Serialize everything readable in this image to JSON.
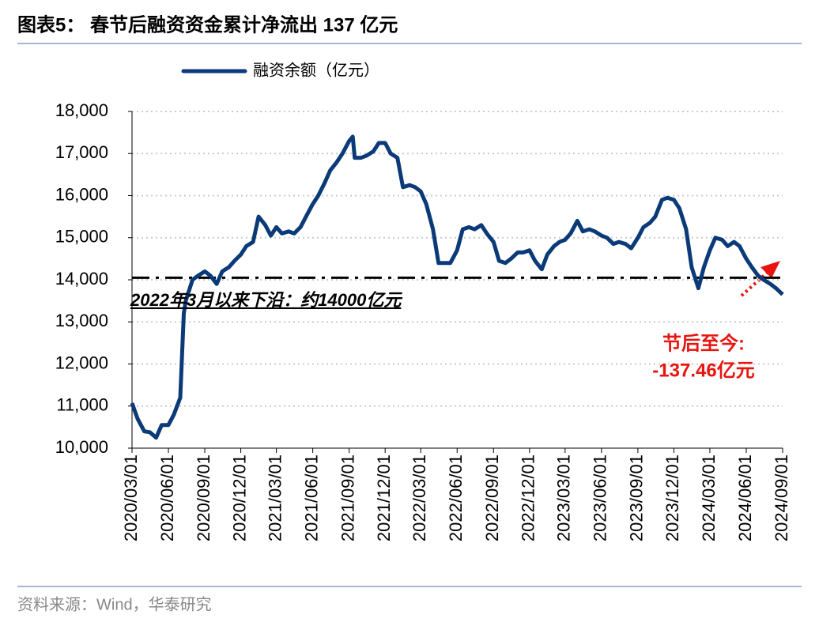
{
  "chart_data": {
    "type": "line",
    "title": "图表5：  春节后融资资金累计净流出 137 亿元",
    "x": [
      "2020/03/01",
      "2020/03/15",
      "2020/04/01",
      "2020/04/15",
      "2020/05/01",
      "2020/05/15",
      "2020/06/01",
      "2020/06/15",
      "2020/07/01",
      "2020/07/10",
      "2020/07/15",
      "2020/08/01",
      "2020/08/15",
      "2020/09/01",
      "2020/09/15",
      "2020/10/01",
      "2020/10/15",
      "2020/11/01",
      "2020/11/15",
      "2020/12/01",
      "2020/12/15",
      "2021/01/01",
      "2021/01/15",
      "2021/02/01",
      "2021/02/15",
      "2021/03/01",
      "2021/03/15",
      "2021/04/01",
      "2021/04/15",
      "2021/05/01",
      "2021/05/15",
      "2021/06/01",
      "2021/06/15",
      "2021/07/01",
      "2021/07/15",
      "2021/08/01",
      "2021/08/15",
      "2021/09/01",
      "2021/09/10",
      "2021/09/15",
      "2021/10/01",
      "2021/10/15",
      "2021/11/01",
      "2021/11/15",
      "2021/12/01",
      "2021/12/15",
      "2022/01/01",
      "2022/01/15",
      "2022/02/01",
      "2022/02/15",
      "2022/03/01",
      "2022/03/15",
      "2022/04/01",
      "2022/04/15",
      "2022/05/01",
      "2022/05/15",
      "2022/06/01",
      "2022/06/15",
      "2022/07/01",
      "2022/07/15",
      "2022/08/01",
      "2022/08/15",
      "2022/09/01",
      "2022/09/15",
      "2022/10/01",
      "2022/10/15",
      "2022/11/01",
      "2022/11/15",
      "2022/12/01",
      "2022/12/15",
      "2023/01/01",
      "2023/01/15",
      "2023/02/01",
      "2023/02/15",
      "2023/03/01",
      "2023/03/15",
      "2023/04/01",
      "2023/04/15",
      "2023/05/01",
      "2023/05/15",
      "2023/06/01",
      "2023/06/15",
      "2023/07/01",
      "2023/07/15",
      "2023/08/01",
      "2023/08/15",
      "2023/09/01",
      "2023/09/15",
      "2023/10/01",
      "2023/10/15",
      "2023/11/01",
      "2023/11/15",
      "2023/12/01",
      "2023/12/15",
      "2024/01/01",
      "2024/01/15",
      "2024/02/01",
      "2024/02/15",
      "2024/03/01",
      "2024/03/15",
      "2024/04/01",
      "2024/04/15",
      "2024/05/01",
      "2024/05/15",
      "2024/06/01",
      "2024/06/15",
      "2024/07/01",
      "2024/07/15",
      "2024/08/01",
      "2024/08/15",
      "2024/09/01"
    ],
    "series": [
      {
        "name": "融资余额（亿元）",
        "color": "#0b3a78",
        "values": [
          11070,
          10700,
          10400,
          10380,
          10250,
          10550,
          10550,
          10800,
          11200,
          13200,
          13500,
          14000,
          14100,
          14200,
          14100,
          13900,
          14200,
          14300,
          14450,
          14600,
          14800,
          14900,
          15500,
          15300,
          15050,
          15250,
          15100,
          15150,
          15100,
          15250,
          15500,
          15800,
          16000,
          16300,
          16600,
          16800,
          17000,
          17300,
          17400,
          16900,
          16900,
          16950,
          17050,
          17250,
          17250,
          17000,
          16900,
          16200,
          16250,
          16200,
          16100,
          15800,
          15200,
          14400,
          14400,
          14400,
          14700,
          15200,
          15250,
          15200,
          15300,
          15100,
          14900,
          14450,
          14400,
          14500,
          14650,
          14650,
          14700,
          14450,
          14250,
          14600,
          14800,
          14900,
          14950,
          15100,
          15400,
          15150,
          15200,
          15150,
          15050,
          15000,
          14850,
          14900,
          14850,
          14750,
          15000,
          15250,
          15350,
          15500,
          15900,
          15950,
          15900,
          15700,
          15200,
          14300,
          13800,
          14300,
          14700,
          15000,
          14950,
          14800,
          14900,
          14800,
          14500,
          14300,
          14100,
          14000,
          13900,
          13800,
          13650
        ]
      }
    ],
    "xlim": [
      "2020/03/01",
      "2024/09/01"
    ],
    "xticks": [
      "2020/03/01",
      "2020/06/01",
      "2020/09/01",
      "2020/12/01",
      "2021/03/01",
      "2021/06/01",
      "2021/09/01",
      "2021/12/01",
      "2022/03/01",
      "2022/06/01",
      "2022/09/01",
      "2022/12/01",
      "2023/03/01",
      "2023/06/01",
      "2023/09/01",
      "2023/12/01",
      "2024/03/01",
      "2024/06/01",
      "2024/09/01"
    ],
    "ylim": [
      10000,
      18000
    ],
    "yticks": [
      {
        "value": 10000,
        "label": "10,000"
      },
      {
        "value": 11000,
        "label": "11,000"
      },
      {
        "value": 12000,
        "label": "12,000"
      },
      {
        "value": 13000,
        "label": "13,000"
      },
      {
        "value": 14000,
        "label": "14,000"
      },
      {
        "value": 15000,
        "label": "15,000"
      },
      {
        "value": 16000,
        "label": "16,000"
      },
      {
        "value": 17000,
        "label": "17,000"
      },
      {
        "value": 18000,
        "label": "18,000"
      }
    ],
    "grid": true,
    "reference_line": {
      "value": 14050,
      "color": "#000000"
    },
    "annotations": [
      {
        "text": "2022年3月以来下沿：约14000亿元",
        "color": "#000000"
      },
      {
        "lines": [
          "节后至今:",
          "-137.46亿元"
        ],
        "color": "#e8140f"
      }
    ]
  },
  "source": "资料来源：Wind，华泰研究"
}
